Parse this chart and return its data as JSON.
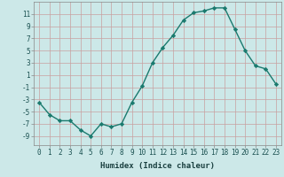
{
  "x": [
    0,
    1,
    2,
    3,
    4,
    5,
    6,
    7,
    8,
    9,
    10,
    11,
    12,
    13,
    14,
    15,
    16,
    17,
    18,
    19,
    20,
    21,
    22,
    23
  ],
  "y": [
    -3.5,
    -5.5,
    -6.5,
    -6.5,
    -8,
    -9,
    -7,
    -7.5,
    -7,
    -3.5,
    -0.8,
    3,
    5.5,
    7.5,
    10,
    11.2,
    11.5,
    12,
    12,
    8.5,
    5,
    2.5,
    2,
    -0.5
  ],
  "line_color": "#1a7a6e",
  "marker": "D",
  "marker_size": 2.2,
  "bg_color": "#cce8e8",
  "grid_color_major": "#c8a0a0",
  "grid_color_minor": "#d4b8b8",
  "xlabel": "Humidex (Indice chaleur)",
  "ylim": [
    -10.5,
    13
  ],
  "xlim": [
    -0.5,
    23.5
  ],
  "yticks": [
    -9,
    -7,
    -5,
    -3,
    -1,
    1,
    3,
    5,
    7,
    9,
    11
  ],
  "xticks": [
    0,
    1,
    2,
    3,
    4,
    5,
    6,
    7,
    8,
    9,
    10,
    11,
    12,
    13,
    14,
    15,
    16,
    17,
    18,
    19,
    20,
    21,
    22,
    23
  ],
  "tick_fontsize": 5.5,
  "label_fontsize": 6.5,
  "line_width": 1.0
}
